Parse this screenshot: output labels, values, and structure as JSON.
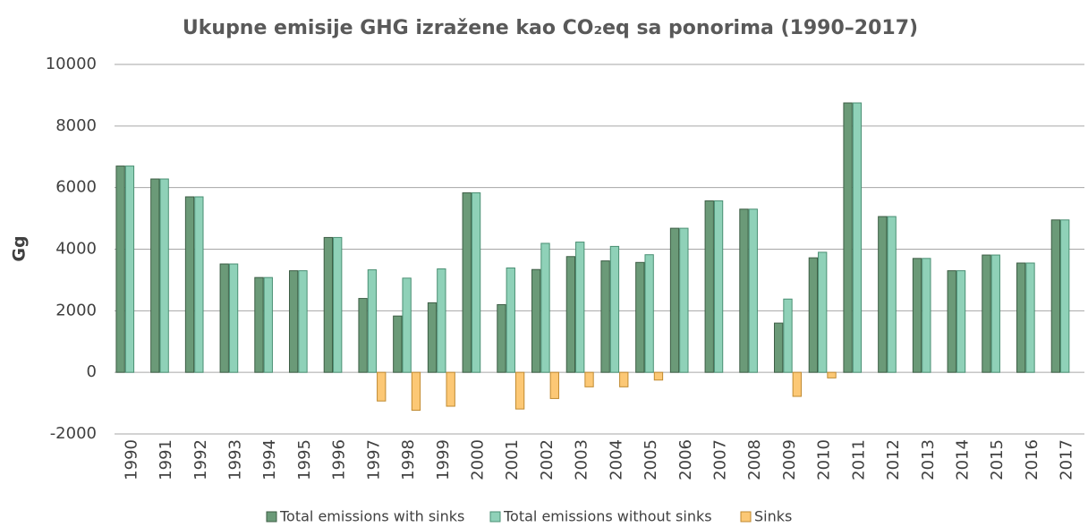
{
  "chart_data": {
    "type": "bar",
    "title": "Ukupne emisije GHG izražene kao CO₂eq sa ponorima (1990–2017)",
    "y_label": "Gg",
    "categories": [
      "1990",
      "1991",
      "1992",
      "1993",
      "1994",
      "1995",
      "1996",
      "1997",
      "1998",
      "1999",
      "2000",
      "2001",
      "2002",
      "2003",
      "2004",
      "2005",
      "2006",
      "2007",
      "2008",
      "2009",
      "2010",
      "2011",
      "2012",
      "2013",
      "2014",
      "2015",
      "2016",
      "2017"
    ],
    "series": [
      {
        "name": "Total emissions with sinks",
        "color": "#6b9a78",
        "values": [
          6700,
          6280,
          5700,
          3520,
          3080,
          3300,
          4380,
          2400,
          1830,
          2260,
          5830,
          2200,
          3340,
          3760,
          3620,
          3570,
          4680,
          5570,
          5300,
          1600,
          3720,
          8750,
          5060,
          3700,
          3300,
          3810,
          3550,
          4950
        ]
      },
      {
        "name": "Total emissions without sinks",
        "color": "#8fd1b8",
        "values": [
          6700,
          6280,
          5700,
          3520,
          3080,
          3300,
          4380,
          3330,
          3060,
          3360,
          5830,
          3390,
          4190,
          4230,
          4090,
          3820,
          4680,
          5570,
          5300,
          2380,
          3900,
          8750,
          5060,
          3700,
          3300,
          3810,
          3550,
          4950
        ]
      },
      {
        "name": "Sinks",
        "color": "#fcc875",
        "values": [
          0,
          0,
          0,
          0,
          0,
          0,
          0,
          -930,
          -1230,
          -1100,
          0,
          -1190,
          -850,
          -470,
          -470,
          -250,
          0,
          0,
          0,
          -780,
          -180,
          0,
          0,
          0,
          0,
          0,
          0,
          0
        ]
      }
    ],
    "ylim": [
      -2000,
      10000
    ],
    "yticks": [
      -2000,
      0,
      2000,
      4000,
      6000,
      8000,
      10000
    ],
    "grid": true
  }
}
